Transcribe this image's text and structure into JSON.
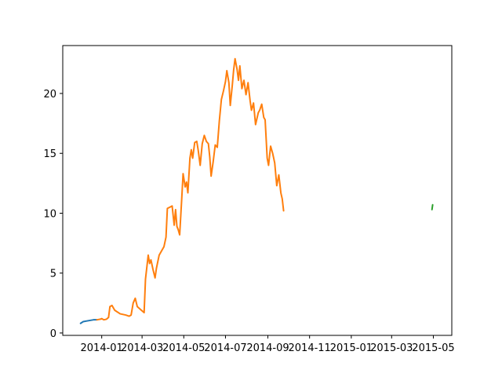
{
  "chart_data": {
    "type": "line",
    "title": "",
    "xlabel": "",
    "ylabel": "",
    "x_type": "date",
    "xlim": [
      "2013-11-05",
      "2015-05-28"
    ],
    "ylim": [
      -0.2,
      24.0
    ],
    "grid": false,
    "x_ticks": [
      {
        "date": "2014-01-01",
        "label": "2014-01"
      },
      {
        "date": "2014-03-01",
        "label": "2014-03"
      },
      {
        "date": "2014-05-01",
        "label": "2014-05"
      },
      {
        "date": "2014-07-01",
        "label": "2014-07"
      },
      {
        "date": "2014-09-01",
        "label": "2014-09"
      },
      {
        "date": "2014-11-01",
        "label": "2014-11"
      },
      {
        "date": "2015-01-01",
        "label": "2015-01"
      },
      {
        "date": "2015-03-01",
        "label": "2015-03"
      },
      {
        "date": "2015-05-01",
        "label": "2015-05"
      }
    ],
    "y_ticks": [
      {
        "value": 0,
        "label": "0"
      },
      {
        "value": 5,
        "label": "5"
      },
      {
        "value": 10,
        "label": "10"
      },
      {
        "value": 15,
        "label": "15"
      },
      {
        "value": 20,
        "label": "20"
      }
    ],
    "series": [
      {
        "color": "#1f77b4",
        "points": [
          [
            "2013-12-01",
            0.8
          ],
          [
            "2013-12-05",
            0.95
          ],
          [
            "2013-12-10",
            1.0
          ],
          [
            "2013-12-15",
            1.05
          ],
          [
            "2013-12-20",
            1.1
          ],
          [
            "2013-12-25",
            1.1
          ]
        ]
      },
      {
        "color": "#ff7f0e",
        "points": [
          [
            "2013-12-25",
            1.1
          ],
          [
            "2013-12-30",
            1.15
          ],
          [
            "2014-01-01",
            1.2
          ],
          [
            "2014-01-04",
            1.1
          ],
          [
            "2014-01-08",
            1.15
          ],
          [
            "2014-01-11",
            1.3
          ],
          [
            "2014-01-13",
            2.2
          ],
          [
            "2014-01-16",
            2.3
          ],
          [
            "2014-01-20",
            1.9
          ],
          [
            "2014-01-28",
            1.6
          ],
          [
            "2014-02-05",
            1.5
          ],
          [
            "2014-02-10",
            1.4
          ],
          [
            "2014-02-13",
            1.5
          ],
          [
            "2014-02-16",
            2.5
          ],
          [
            "2014-02-19",
            2.9
          ],
          [
            "2014-02-22",
            2.2
          ],
          [
            "2014-02-28",
            1.9
          ],
          [
            "2014-03-04",
            1.7
          ],
          [
            "2014-03-06",
            4.5
          ],
          [
            "2014-03-08",
            5.5
          ],
          [
            "2014-03-10",
            6.5
          ],
          [
            "2014-03-12",
            5.8
          ],
          [
            "2014-03-14",
            6.1
          ],
          [
            "2014-03-17",
            5.3
          ],
          [
            "2014-03-20",
            4.6
          ],
          [
            "2014-03-22",
            5.4
          ],
          [
            "2014-03-26",
            6.5
          ],
          [
            "2014-03-29",
            6.8
          ],
          [
            "2014-04-02",
            7.2
          ],
          [
            "2014-04-05",
            8.0
          ],
          [
            "2014-04-07",
            10.4
          ],
          [
            "2014-04-14",
            10.6
          ],
          [
            "2014-04-17",
            9.0
          ],
          [
            "2014-04-19",
            10.3
          ],
          [
            "2014-04-21",
            8.9
          ],
          [
            "2014-04-23",
            8.6
          ],
          [
            "2014-04-25",
            8.2
          ],
          [
            "2014-04-28",
            11.2
          ],
          [
            "2014-04-30",
            13.3
          ],
          [
            "2014-05-03",
            12.2
          ],
          [
            "2014-05-05",
            12.6
          ],
          [
            "2014-05-07",
            11.7
          ],
          [
            "2014-05-10",
            14.6
          ],
          [
            "2014-05-12",
            15.3
          ],
          [
            "2014-05-14",
            14.6
          ],
          [
            "2014-05-17",
            15.9
          ],
          [
            "2014-05-20",
            16.0
          ],
          [
            "2014-05-22",
            15.3
          ],
          [
            "2014-05-25",
            14.0
          ],
          [
            "2014-05-28",
            15.8
          ],
          [
            "2014-05-31",
            16.5
          ],
          [
            "2014-06-03",
            16.0
          ],
          [
            "2014-06-06",
            15.8
          ],
          [
            "2014-06-08",
            14.7
          ],
          [
            "2014-06-10",
            13.1
          ],
          [
            "2014-06-13",
            14.3
          ],
          [
            "2014-06-16",
            15.7
          ],
          [
            "2014-06-19",
            15.5
          ],
          [
            "2014-06-22",
            17.7
          ],
          [
            "2014-06-25",
            19.5
          ],
          [
            "2014-06-28",
            20.2
          ],
          [
            "2014-07-01",
            21.0
          ],
          [
            "2014-07-03",
            21.9
          ],
          [
            "2014-07-06",
            20.9
          ],
          [
            "2014-07-08",
            19.0
          ],
          [
            "2014-07-11",
            20.7
          ],
          [
            "2014-07-13",
            22.0
          ],
          [
            "2014-07-15",
            22.9
          ],
          [
            "2014-07-18",
            22.0
          ],
          [
            "2014-07-20",
            21.1
          ],
          [
            "2014-07-22",
            22.3
          ],
          [
            "2014-07-25",
            20.4
          ],
          [
            "2014-07-28",
            21.1
          ],
          [
            "2014-07-31",
            19.9
          ],
          [
            "2014-08-03",
            20.9
          ],
          [
            "2014-08-06",
            19.4
          ],
          [
            "2014-08-08",
            18.6
          ],
          [
            "2014-08-11",
            19.2
          ],
          [
            "2014-08-14",
            17.4
          ],
          [
            "2014-08-18",
            18.4
          ],
          [
            "2014-08-20",
            18.6
          ],
          [
            "2014-08-23",
            19.1
          ],
          [
            "2014-08-26",
            18.0
          ],
          [
            "2014-08-28",
            17.8
          ],
          [
            "2014-08-31",
            14.6
          ],
          [
            "2014-09-02",
            14.0
          ],
          [
            "2014-09-05",
            15.6
          ],
          [
            "2014-09-08",
            15.0
          ],
          [
            "2014-09-11",
            14.2
          ],
          [
            "2014-09-14",
            12.3
          ],
          [
            "2014-09-17",
            13.2
          ],
          [
            "2014-09-20",
            11.7
          ],
          [
            "2014-09-22",
            11.2
          ],
          [
            "2014-09-24",
            10.2
          ]
        ]
      },
      {
        "color": "#2ca02c",
        "points": [
          [
            "2015-04-29",
            10.3
          ],
          [
            "2015-04-30",
            10.7
          ]
        ]
      }
    ]
  }
}
